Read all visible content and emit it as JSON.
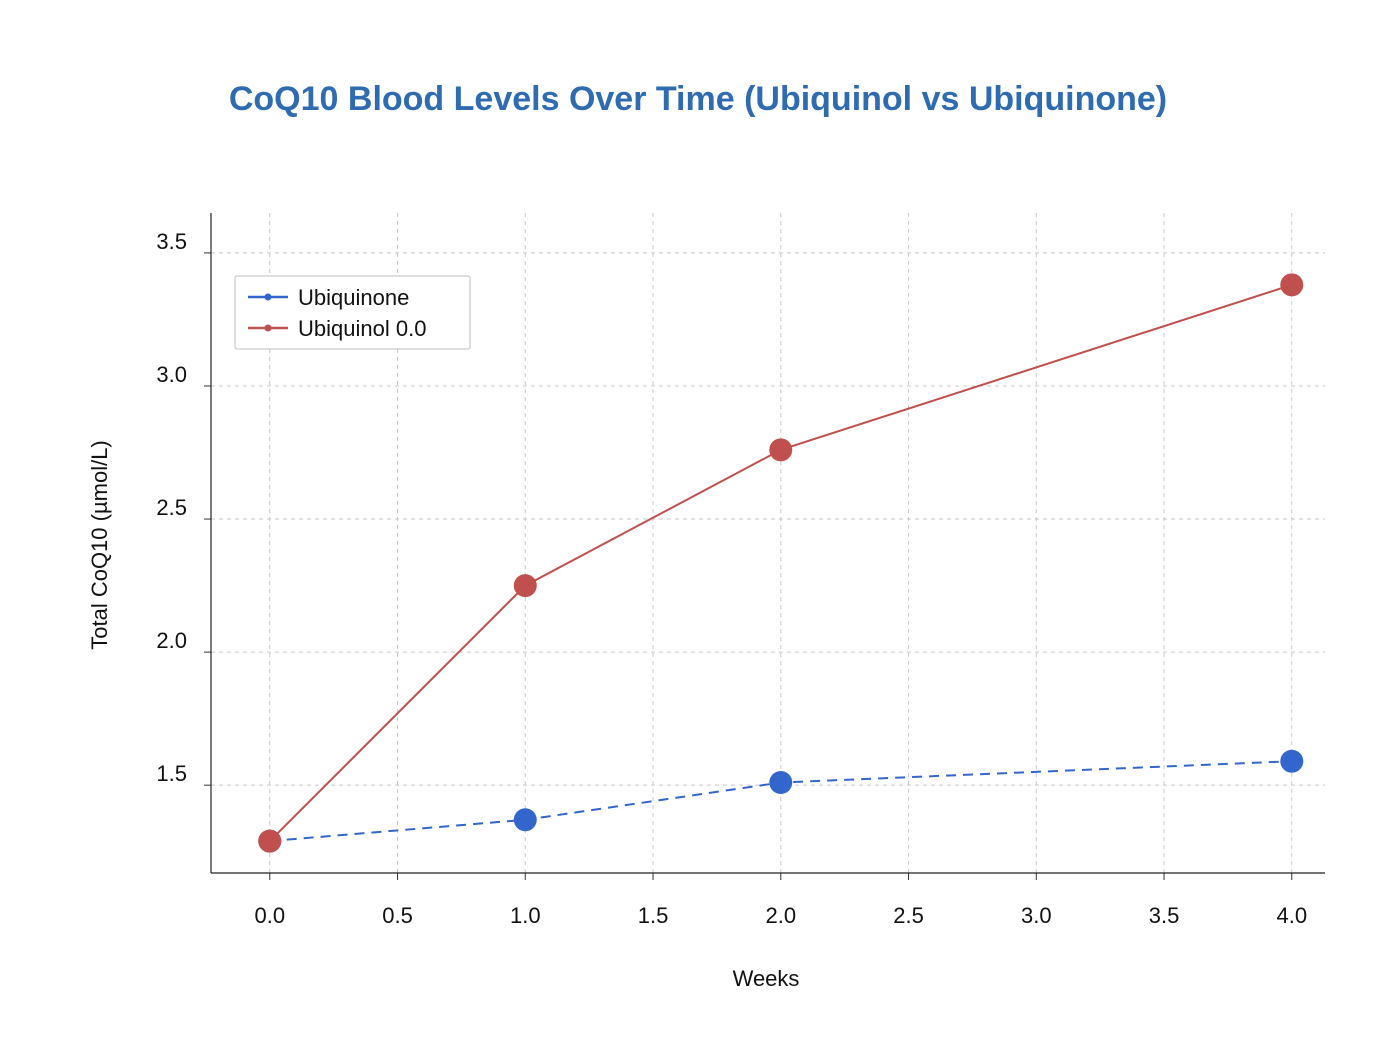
{
  "chart_data": {
    "type": "line",
    "title": "CoQ10 Blood Levels Over Time (Ubiquinol vs Ubiquinone)",
    "xlabel": "Weeks",
    "ylabel": "Total CoQ10 (µmol/L)",
    "xlim": [
      -0.23,
      4.13
    ],
    "ylim": [
      1.17,
      3.65
    ],
    "xticks": [
      0.0,
      0.5,
      1.0,
      1.5,
      2.0,
      2.5,
      3.0,
      3.5,
      4.0
    ],
    "xtick_labels": [
      "0.0",
      "0.5",
      "1.0",
      "1.5",
      "2.0",
      "2.5",
      "3.0",
      "3.5",
      "4.0"
    ],
    "yticks": [
      1.5,
      2.0,
      2.5,
      3.0,
      3.5
    ],
    "ytick_labels": [
      "1.5",
      "2.0",
      "2.5",
      "3.0",
      "3.5"
    ],
    "grid": true,
    "legend_position": "top-left",
    "series": [
      {
        "name": "Ubiquinone",
        "x": [
          0,
          1,
          2,
          4
        ],
        "y": [
          1.29,
          1.37,
          1.51,
          1.59
        ],
        "color": "#3366cc",
        "line_style": "dashed"
      },
      {
        "name": "Ubiquinol 0.0",
        "x": [
          0,
          1,
          2,
          4
        ],
        "y": [
          1.29,
          2.25,
          2.76,
          3.38
        ],
        "color": "#c0504d",
        "line_style": "solid"
      }
    ],
    "title_color": "#2e6bb0"
  }
}
